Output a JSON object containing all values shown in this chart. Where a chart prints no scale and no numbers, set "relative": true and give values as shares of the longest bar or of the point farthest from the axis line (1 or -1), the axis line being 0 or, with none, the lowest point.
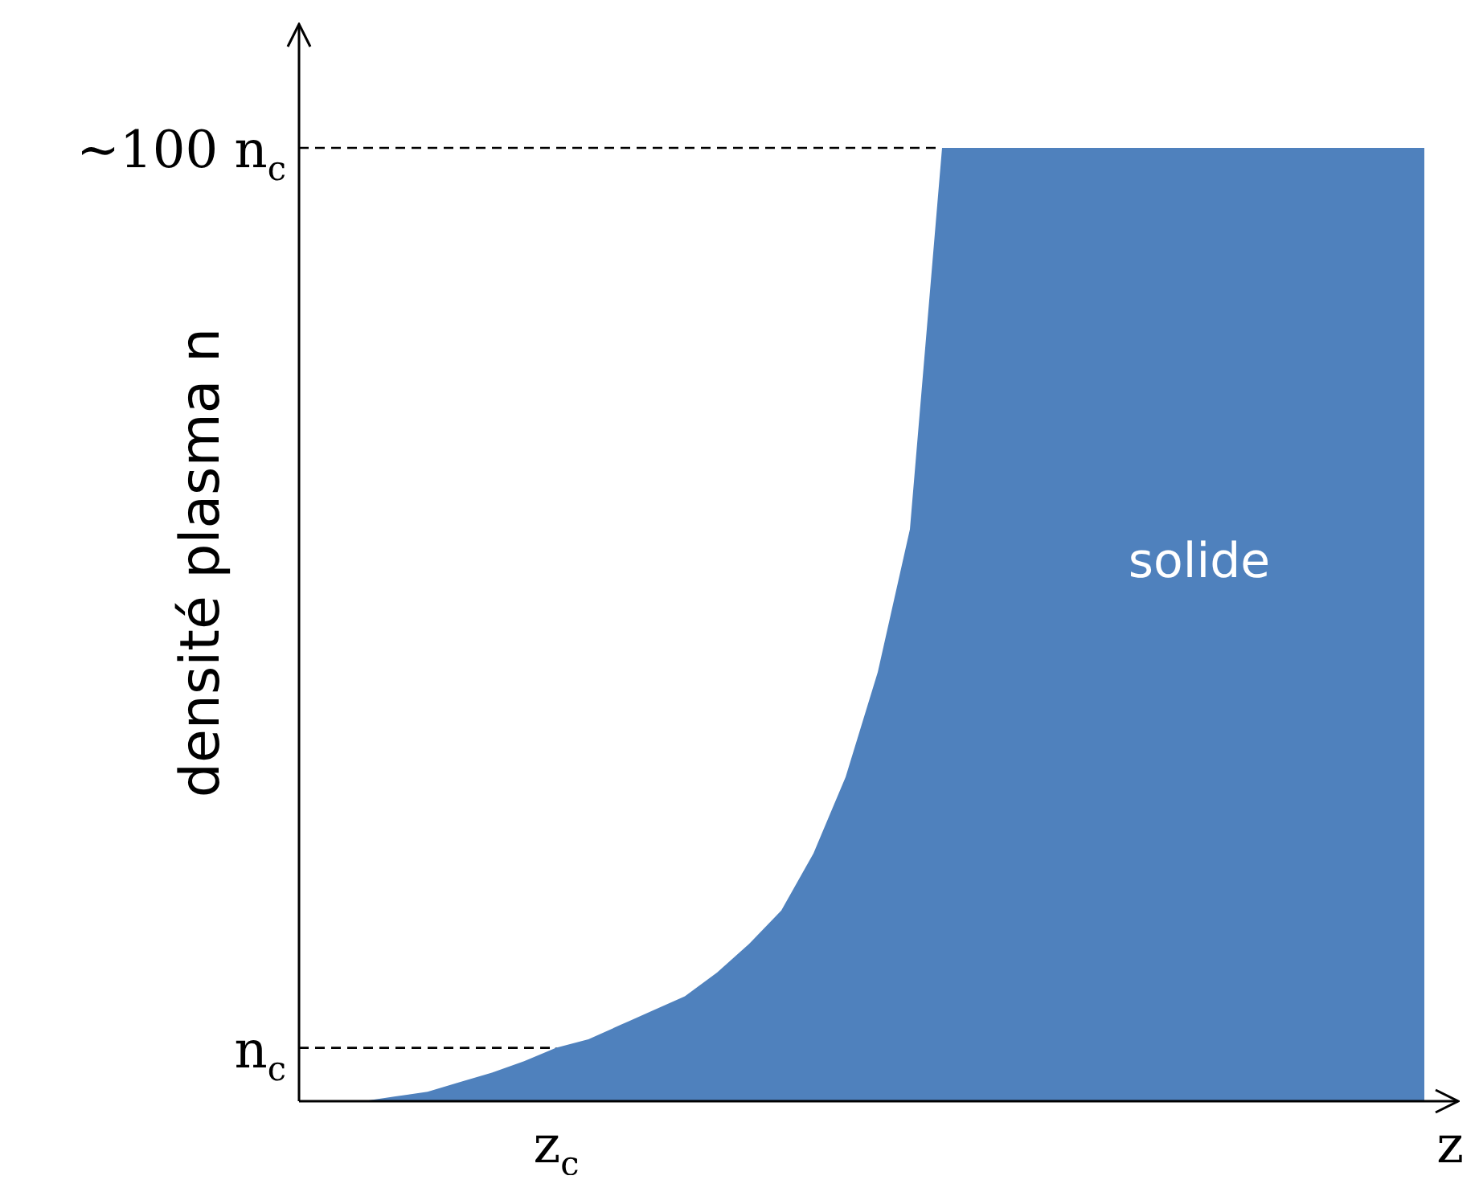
{
  "chart_data": {
    "type": "area",
    "relative": true,
    "ylabel": "densité plasma n",
    "xlabel": "z",
    "annotations": [
      "solide",
      {
        "text": "z$_{c}$",
        "y": 0.056
      }
    ],
    "categories": [
      null,
      null,
      null,
      null,
      null,
      null,
      null,
      null,
      null,
      null,
      null,
      null,
      null,
      null,
      null,
      null,
      null,
      null,
      null,
      null,
      null,
      null,
      null,
      null,
      null,
      null,
      null,
      null,
      null,
      null,
      null,
      null,
      null,
      null,
      null,
      null
    ],
    "series": [
      {
        "color": "#4f81bd",
        "values": [
          0,
          0,
          0,
          0.005,
          0.01,
          0.02,
          0.03,
          0.042,
          0.056,
          0.065,
          0.08,
          0.095,
          0.11,
          0.135,
          0.165,
          0.2,
          0.26,
          0.34,
          0.45,
          0.6,
          1,
          1,
          1,
          1,
          1,
          1,
          1,
          1,
          1,
          1,
          1,
          1,
          1,
          1,
          1,
          1
        ]
      }
    ],
    "ref_lines": [
      {
        "axis": "y",
        "value": 1,
        "label": "~100 n$_{c}$",
        "line_style": "dashed"
      },
      {
        "axis": "y",
        "value": 0.056,
        "label": "n$_{c}$",
        "line_style": "dashed"
      }
    ],
    "legend": false,
    "marker": "none"
  }
}
